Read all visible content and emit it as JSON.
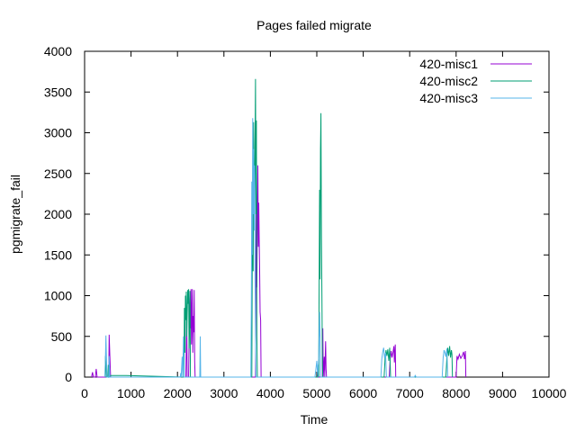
{
  "chart_data": {
    "type": "line",
    "title": "Pages failed migrate",
    "xlabel": "Time",
    "ylabel": "pgmigrate_fail",
    "xlim": [
      0,
      10000
    ],
    "ylim": [
      0,
      4000
    ],
    "xticks": [
      0,
      1000,
      2000,
      3000,
      4000,
      5000,
      6000,
      7000,
      8000,
      9000,
      10000
    ],
    "yticks": [
      0,
      500,
      1000,
      1500,
      2000,
      2500,
      3000,
      3500,
      4000
    ],
    "grid": false,
    "legend_position": "top-right",
    "series": [
      {
        "name": "420-misc1",
        "color": "#9400d3",
        "points": [
          [
            150,
            0
          ],
          [
            170,
            60
          ],
          [
            190,
            0
          ],
          [
            230,
            0
          ],
          [
            250,
            100
          ],
          [
            270,
            0
          ],
          [
            520,
            0
          ],
          [
            530,
            520
          ],
          [
            545,
            250
          ],
          [
            560,
            0
          ],
          [
            2180,
            0
          ],
          [
            2200,
            700
          ],
          [
            2210,
            0
          ],
          [
            2240,
            0
          ],
          [
            2260,
            900
          ],
          [
            2270,
            1050
          ],
          [
            2280,
            600
          ],
          [
            2290,
            1080
          ],
          [
            2300,
            400
          ],
          [
            2310,
            800
          ],
          [
            2320,
            1080
          ],
          [
            2330,
            300
          ],
          [
            2340,
            750
          ],
          [
            2350,
            550
          ],
          [
            2360,
            1070
          ],
          [
            2370,
            200
          ],
          [
            2380,
            0
          ],
          [
            3680,
            0
          ],
          [
            3690,
            1500
          ],
          [
            3700,
            2700
          ],
          [
            3710,
            1100
          ],
          [
            3720,
            2000
          ],
          [
            3730,
            2600
          ],
          [
            3740,
            1600
          ],
          [
            3750,
            2140
          ],
          [
            3760,
            1700
          ],
          [
            3770,
            1300
          ],
          [
            3780,
            800
          ],
          [
            3790,
            700
          ],
          [
            3800,
            0
          ],
          [
            5120,
            0
          ],
          [
            5130,
            600
          ],
          [
            5140,
            0
          ],
          [
            5160,
            250
          ],
          [
            5170,
            0
          ],
          [
            5190,
            440
          ],
          [
            5200,
            100
          ],
          [
            5210,
            0
          ],
          [
            6560,
            0
          ],
          [
            6580,
            220
          ],
          [
            6600,
            320
          ],
          [
            6620,
            240
          ],
          [
            6640,
            300
          ],
          [
            6660,
            380
          ],
          [
            6670,
            180
          ],
          [
            6690,
            400
          ],
          [
            6700,
            0
          ],
          [
            8000,
            0
          ],
          [
            8020,
            260
          ],
          [
            8040,
            220
          ],
          [
            8070,
            280
          ],
          [
            8100,
            230
          ],
          [
            8130,
            260
          ],
          [
            8160,
            310
          ],
          [
            8180,
            220
          ],
          [
            8200,
            320
          ],
          [
            8210,
            0
          ]
        ]
      },
      {
        "name": "420-misc2",
        "color": "#009e73",
        "points": [
          [
            440,
            0
          ],
          [
            450,
            260
          ],
          [
            470,
            0
          ],
          [
            500,
            0
          ],
          [
            510,
            150
          ],
          [
            520,
            0
          ],
          [
            560,
            20
          ],
          [
            900,
            20
          ],
          [
            2140,
            0
          ],
          [
            2150,
            850
          ],
          [
            2160,
            300
          ],
          [
            2170,
            1000
          ],
          [
            2180,
            700
          ],
          [
            2190,
            1050
          ],
          [
            2200,
            500
          ],
          [
            2220,
            1070
          ],
          [
            2230,
            900
          ],
          [
            2240,
            1080
          ],
          [
            2250,
            350
          ],
          [
            2270,
            1060
          ],
          [
            2280,
            0
          ],
          [
            3600,
            0
          ],
          [
            3610,
            1500
          ],
          [
            3620,
            2200
          ],
          [
            3630,
            1300
          ],
          [
            3640,
            3130
          ],
          [
            3650,
            2600
          ],
          [
            3660,
            1800
          ],
          [
            3670,
            2880
          ],
          [
            3680,
            3660
          ],
          [
            3690,
            2000
          ],
          [
            3700,
            3150
          ],
          [
            3710,
            500
          ],
          [
            3720,
            0
          ],
          [
            5020,
            0
          ],
          [
            5030,
            150
          ],
          [
            5040,
            0
          ],
          [
            5060,
            2300
          ],
          [
            5070,
            1200
          ],
          [
            5080,
            2800
          ],
          [
            5090,
            3240
          ],
          [
            5100,
            1700
          ],
          [
            5110,
            1000
          ],
          [
            5120,
            150
          ],
          [
            5130,
            0
          ],
          [
            6450,
            0
          ],
          [
            6470,
            240
          ],
          [
            6490,
            330
          ],
          [
            6510,
            260
          ],
          [
            6530,
            340
          ],
          [
            6550,
            200
          ],
          [
            6570,
            360
          ],
          [
            6590,
            0
          ],
          [
            7780,
            0
          ],
          [
            7800,
            230
          ],
          [
            7820,
            360
          ],
          [
            7840,
            260
          ],
          [
            7860,
            380
          ],
          [
            7880,
            240
          ],
          [
            7900,
            330
          ],
          [
            7910,
            280
          ],
          [
            7920,
            0
          ]
        ]
      },
      {
        "name": "420-misc3",
        "color": "#56b4e9",
        "points": [
          [
            440,
            0
          ],
          [
            460,
            510
          ],
          [
            480,
            0
          ],
          [
            520,
            0
          ],
          [
            530,
            260
          ],
          [
            540,
            0
          ],
          [
            2060,
            0
          ],
          [
            2070,
            50
          ],
          [
            2080,
            0
          ],
          [
            2100,
            250
          ],
          [
            2110,
            0
          ],
          [
            2130,
            500
          ],
          [
            2140,
            0
          ],
          [
            2480,
            0
          ],
          [
            2490,
            500
          ],
          [
            2500,
            0
          ],
          [
            3580,
            0
          ],
          [
            3590,
            800
          ],
          [
            3600,
            2400
          ],
          [
            3610,
            1500
          ],
          [
            3620,
            3180
          ],
          [
            3630,
            2000
          ],
          [
            3640,
            2800
          ],
          [
            3650,
            1800
          ],
          [
            3660,
            2600
          ],
          [
            3670,
            1200
          ],
          [
            3680,
            500
          ],
          [
            3690,
            0
          ],
          [
            4960,
            0
          ],
          [
            4980,
            100
          ],
          [
            5000,
            200
          ],
          [
            5020,
            0
          ],
          [
            5040,
            250
          ],
          [
            5060,
            800
          ],
          [
            5070,
            500
          ],
          [
            5080,
            0
          ],
          [
            6380,
            0
          ],
          [
            6400,
            220
          ],
          [
            6420,
            310
          ],
          [
            6440,
            360
          ],
          [
            6460,
            230
          ],
          [
            6480,
            300
          ],
          [
            6500,
            0
          ],
          [
            7100,
            0
          ],
          [
            7120,
            20
          ],
          [
            7140,
            0
          ],
          [
            7700,
            0
          ],
          [
            7720,
            240
          ],
          [
            7740,
            330
          ],
          [
            7760,
            300
          ],
          [
            7780,
            250
          ],
          [
            7800,
            350
          ],
          [
            7820,
            0
          ]
        ]
      }
    ]
  }
}
